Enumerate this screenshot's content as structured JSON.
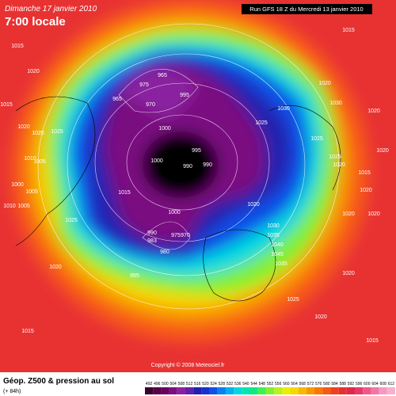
{
  "header": {
    "date": "Dimanche 17 janvier 2010",
    "time": "7:00 locale",
    "run": "Run GFS 18 Z du Mercredi 13 janvier 2010"
  },
  "footer": {
    "title": "Géop. Z500 & pression au sol",
    "lead": "(+ 84h)",
    "copyright": "Copyright © 2008 Meteociel.fr"
  },
  "legend": {
    "levels": [
      492,
      496,
      500,
      504,
      508,
      512,
      516,
      520,
      524,
      528,
      532,
      536,
      540,
      544,
      548,
      552,
      556,
      560,
      564,
      568,
      572,
      576,
      580,
      584,
      588,
      592,
      596,
      600,
      604,
      608,
      612
    ],
    "colors": [
      "#3a0030",
      "#560048",
      "#6a0060",
      "#7a1080",
      "#8a20a0",
      "#6020a8",
      "#2020b0",
      "#1830d0",
      "#1050e8",
      "#0880f0",
      "#00b0f0",
      "#00d8e0",
      "#00e8b0",
      "#10e880",
      "#40f050",
      "#80f030",
      "#b8f020",
      "#e8f000",
      "#f8d800",
      "#f8b800",
      "#f89800",
      "#f87800",
      "#f85818",
      "#f04020",
      "#e83030",
      "#e02848",
      "#e83868",
      "#f05888",
      "#f078a8",
      "#f898c0",
      "#f8b0d0"
    ]
  },
  "isobars": [
    1015,
    1015,
    1020,
    1015,
    1020,
    1030,
    1030,
    1025,
    1025,
    1020,
    1025,
    1025,
    1010,
    1005,
    1000,
    1005,
    1010,
    1005,
    1025,
    965,
    975,
    965,
    970,
    995,
    1000,
    1000,
    995,
    990,
    990,
    1015,
    1000,
    990,
    983,
    975,
    970,
    980,
    995,
    1020,
    1030,
    1035,
    1040,
    1045,
    1035,
    1025,
    1020,
    1020,
    1020,
    1015,
    1020,
    1020,
    1020,
    1020,
    1025,
    1020,
    1015,
    1015,
    1020
  ]
}
